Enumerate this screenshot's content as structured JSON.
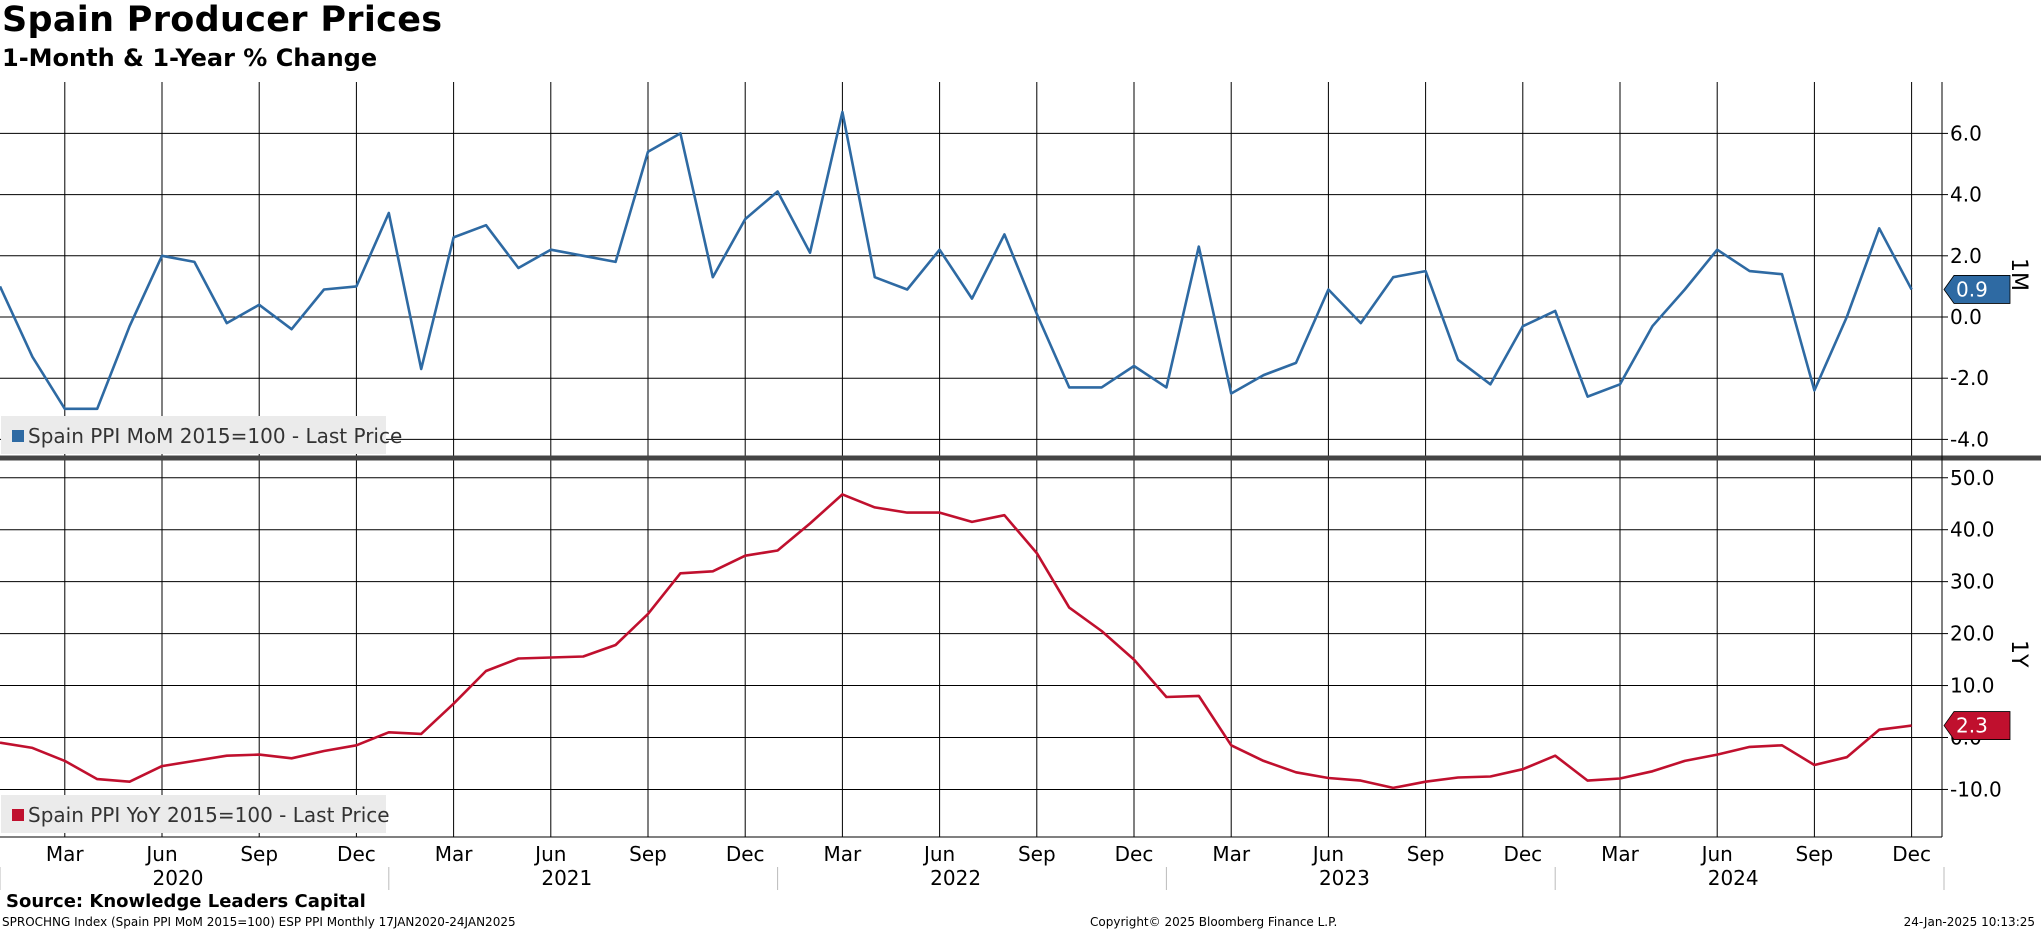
{
  "title": "Spain Producer Prices",
  "subtitle": "1-Month & 1-Year % Change",
  "footer": {
    "source": "Source: Knowledge Leaders Capital",
    "left": "SPROCHNG Index (Spain PPI MoM 2015=100) ESP PPI  Monthly 17JAN2020-24JAN2025",
    "mid": "Copyright© 2025 Bloomberg Finance L.P.",
    "right": "24-Jan-2025 10:13:25"
  },
  "colors": {
    "mom": "#2e6aa3",
    "yoy": "#c0102e"
  },
  "chart_data": [
    {
      "type": "line",
      "panel": "top",
      "axis_name": "1M",
      "legend": "Spain PPI MoM 2015=100  - Last Price",
      "last_value": "0.9",
      "ylim": [
        -4.5,
        7.5
      ],
      "yticks": [
        "6.0",
        "4.0",
        "2.0",
        "0.0",
        "-2.0",
        "-4.0"
      ],
      "x_start": "2020-01",
      "values": [
        1.0,
        -1.3,
        -3.0,
        -3.0,
        -0.3,
        2.0,
        1.8,
        -0.2,
        0.4,
        -0.4,
        0.9,
        1.0,
        3.4,
        -1.7,
        2.6,
        3.0,
        1.6,
        2.2,
        2.0,
        1.8,
        5.4,
        6.0,
        1.3,
        3.2,
        4.1,
        2.1,
        6.7,
        1.3,
        0.9,
        2.2,
        0.6,
        2.7,
        0.1,
        -2.3,
        -2.3,
        -1.6,
        -2.3,
        2.3,
        -2.5,
        -1.9,
        -1.5,
        0.9,
        -0.2,
        1.3,
        1.5,
        -1.4,
        -2.2,
        -0.3,
        0.2,
        -2.6,
        -2.2,
        -0.3,
        0.9,
        2.2,
        1.5,
        1.4,
        -2.4,
        0.0,
        2.9,
        0.9
      ]
    },
    {
      "type": "line",
      "panel": "bottom",
      "axis_name": "1Y",
      "legend": "Spain PPI YoY 2015=100  - Last Price",
      "last_value": "2.3",
      "ylim": [
        -15.0,
        50.0
      ],
      "yticks": [
        "50.0",
        "40.0",
        "30.0",
        "20.0",
        "10.0",
        "0.0",
        "-10.0"
      ],
      "x_start": "2020-01",
      "values": [
        -1.0,
        -2.0,
        -4.5,
        -8.0,
        -8.5,
        -5.5,
        -4.5,
        -3.5,
        -3.3,
        -4.0,
        -2.6,
        -1.5,
        1.0,
        0.7,
        6.5,
        12.8,
        15.2,
        15.4,
        15.6,
        17.8,
        23.8,
        31.6,
        32.0,
        35.0,
        36.0,
        41.2,
        46.8,
        44.3,
        43.3,
        43.3,
        41.5,
        42.8,
        35.5,
        25.0,
        20.5,
        15.0,
        7.8,
        8.0,
        -1.5,
        -4.5,
        -6.7,
        -7.8,
        -8.3,
        -9.7,
        -8.5,
        -7.7,
        -7.5,
        -6.1,
        -3.5,
        -8.3,
        -7.9,
        -6.5,
        -4.5,
        -3.3,
        -1.8,
        -1.5,
        -5.3,
        -3.8,
        1.5,
        2.3
      ]
    }
  ],
  "x_axis": {
    "months": [
      "Mar",
      "Jun",
      "Sep",
      "Dec",
      "Mar",
      "Jun",
      "Sep",
      "Dec",
      "Mar",
      "Jun",
      "Sep",
      "Dec",
      "Mar",
      "Jun",
      "Sep",
      "Dec",
      "Mar",
      "Jun",
      "Sep",
      "Dec"
    ],
    "years": [
      "2020",
      "2021",
      "2022",
      "2023",
      "2024"
    ]
  }
}
